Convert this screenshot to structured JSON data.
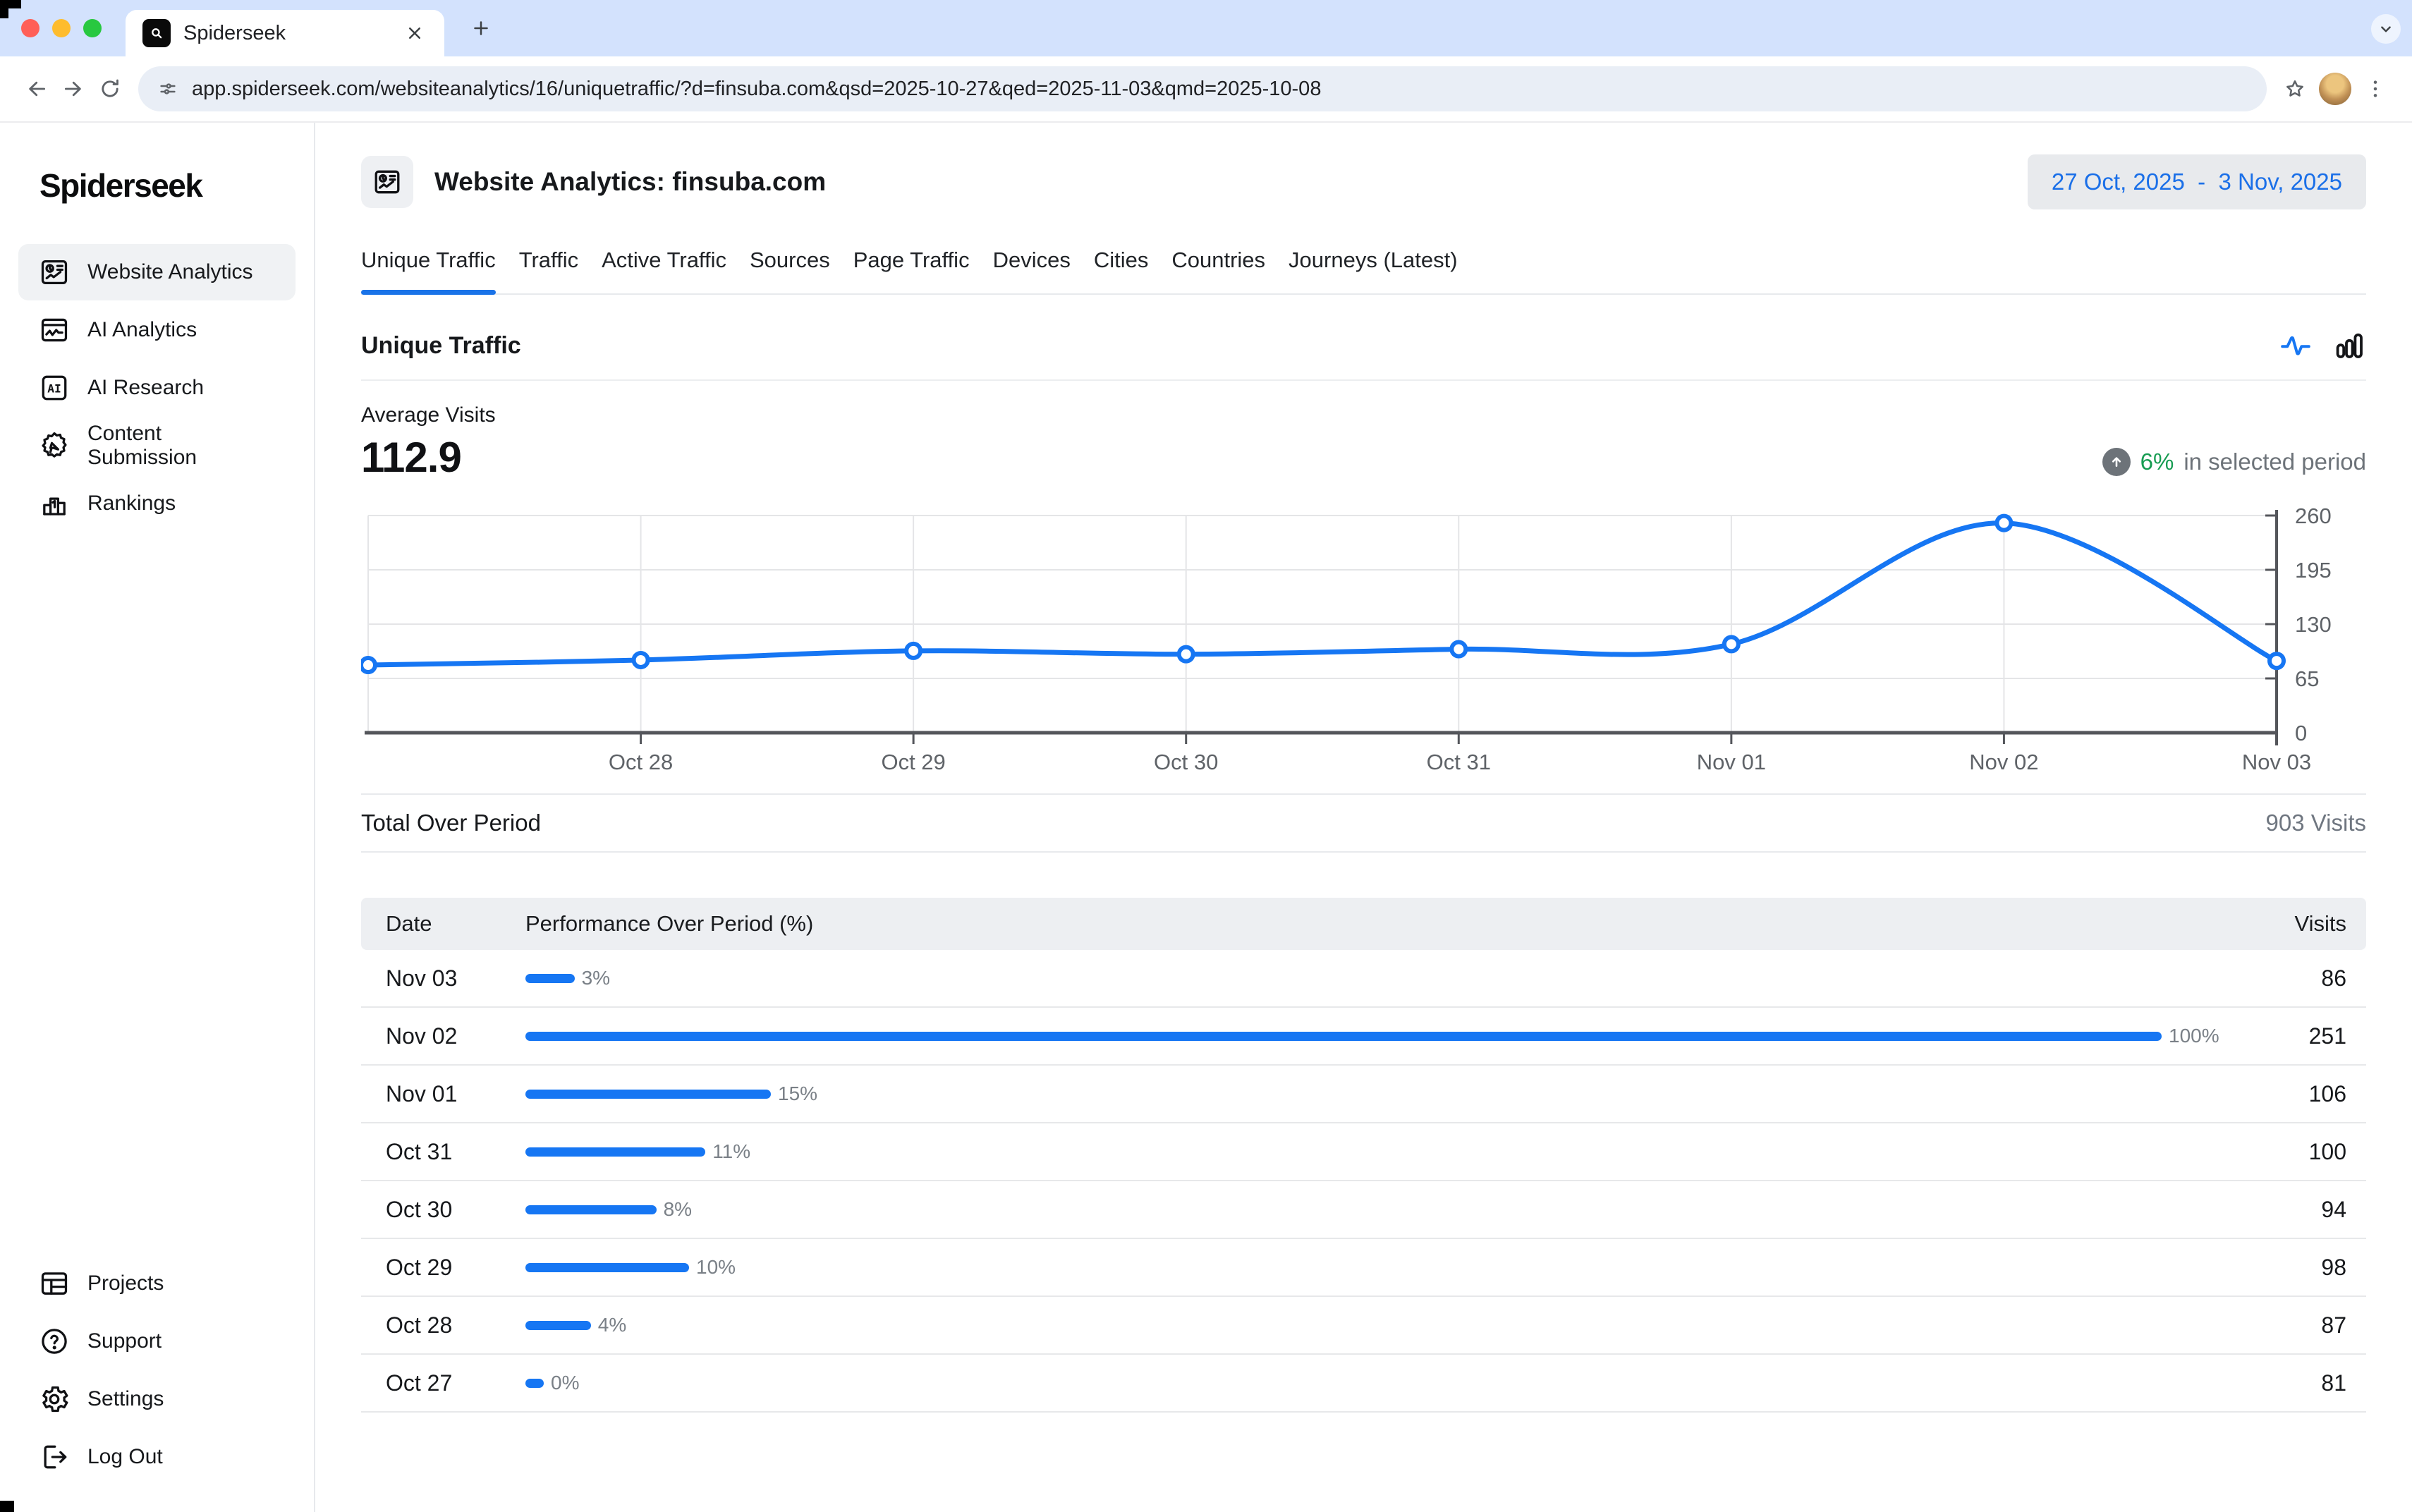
{
  "browser": {
    "tab_title": "Spiderseek",
    "url": "app.spiderseek.com/websiteanalytics/16/uniquetraffic/?d=finsuba.com&qsd=2025-10-27&qed=2025-11-03&qmd=2025-10-08"
  },
  "sidebar": {
    "logo": "Spiderseek",
    "items": [
      {
        "label": "Website Analytics",
        "icon": "website-analytics-icon",
        "active": true
      },
      {
        "label": "AI Analytics",
        "icon": "ai-analytics-icon",
        "active": false
      },
      {
        "label": "AI Research",
        "icon": "ai-research-icon",
        "active": false
      },
      {
        "label": "Content Submission",
        "icon": "content-submission-icon",
        "active": false
      },
      {
        "label": "Rankings",
        "icon": "rankings-icon",
        "active": false
      }
    ],
    "footer_items": [
      {
        "label": "Projects",
        "icon": "projects-icon",
        "active": false
      },
      {
        "label": "Support",
        "icon": "support-icon",
        "active": false
      },
      {
        "label": "Settings",
        "icon": "settings-icon",
        "active": false
      },
      {
        "label": "Log Out",
        "icon": "logout-icon",
        "active": false
      }
    ]
  },
  "header": {
    "title": "Website Analytics: finsuba.com",
    "date_range": "27 Oct, 2025  -  3 Nov, 2025"
  },
  "tabs": [
    {
      "label": "Unique Traffic",
      "active": true
    },
    {
      "label": "Traffic",
      "active": false
    },
    {
      "label": "Active Traffic",
      "active": false
    },
    {
      "label": "Sources",
      "active": false
    },
    {
      "label": "Page Traffic",
      "active": false
    },
    {
      "label": "Devices",
      "active": false
    },
    {
      "label": "Cities",
      "active": false
    },
    {
      "label": "Countries",
      "active": false
    },
    {
      "label": "Journeys (Latest)",
      "active": false
    }
  ],
  "section": {
    "title": "Unique Traffic",
    "avg_label": "Average Visits",
    "avg_value": "112.9",
    "change_value": "6%",
    "change_text": "in selected period",
    "total_label": "Total Over Period",
    "total_value": "903 Visits"
  },
  "chart_data": {
    "type": "line",
    "title": "Unique Traffic",
    "x": [
      "Oct 27",
      "Oct 28",
      "Oct 29",
      "Oct 30",
      "Oct 31",
      "Nov 01",
      "Nov 02",
      "Nov 03"
    ],
    "x_tick_labels": [
      "Oct 28",
      "Oct 29",
      "Oct 30",
      "Oct 31",
      "Nov 01",
      "Nov 02",
      "Nov 03"
    ],
    "values": [
      81,
      87,
      98,
      94,
      100,
      106,
      251,
      86
    ],
    "y_ticks": [
      0,
      65,
      130,
      195,
      260
    ],
    "ylim": [
      0,
      260
    ],
    "xlabel": "",
    "ylabel": "",
    "grid": true,
    "legend": false,
    "y_axis_side": "right",
    "line_color": "#1676f3",
    "marker": "open-circle"
  },
  "table": {
    "headers": {
      "date": "Date",
      "performance": "Performance Over Period (%)",
      "visits": "Visits"
    },
    "rows": [
      {
        "date": "Nov 03",
        "pct": 3,
        "pct_label": "3%",
        "visits": "86"
      },
      {
        "date": "Nov 02",
        "pct": 100,
        "pct_label": "100%",
        "visits": "251"
      },
      {
        "date": "Nov 01",
        "pct": 15,
        "pct_label": "15%",
        "visits": "106"
      },
      {
        "date": "Oct 31",
        "pct": 11,
        "pct_label": "11%",
        "visits": "100"
      },
      {
        "date": "Oct 30",
        "pct": 8,
        "pct_label": "8%",
        "visits": "94"
      },
      {
        "date": "Oct 29",
        "pct": 10,
        "pct_label": "10%",
        "visits": "98"
      },
      {
        "date": "Oct 28",
        "pct": 4,
        "pct_label": "4%",
        "visits": "87"
      },
      {
        "date": "Oct 27",
        "pct": 0,
        "pct_label": "0%",
        "visits": "81"
      }
    ]
  },
  "colors": {
    "accent_blue": "#1a73e8",
    "chart_blue": "#1676f3",
    "date_text_blue": "#1a6fe8",
    "positive_green": "#179c52",
    "muted_gray": "#5f6368",
    "tabstrip_bg": "#d3e2fd",
    "omnibox_bg": "#e9eef6",
    "active_item_bg": "#f0f2f4",
    "table_header_bg": "#edeff2",
    "mac_red": "#ff5f57",
    "mac_yellow": "#febc2e",
    "mac_green": "#28c840"
  }
}
